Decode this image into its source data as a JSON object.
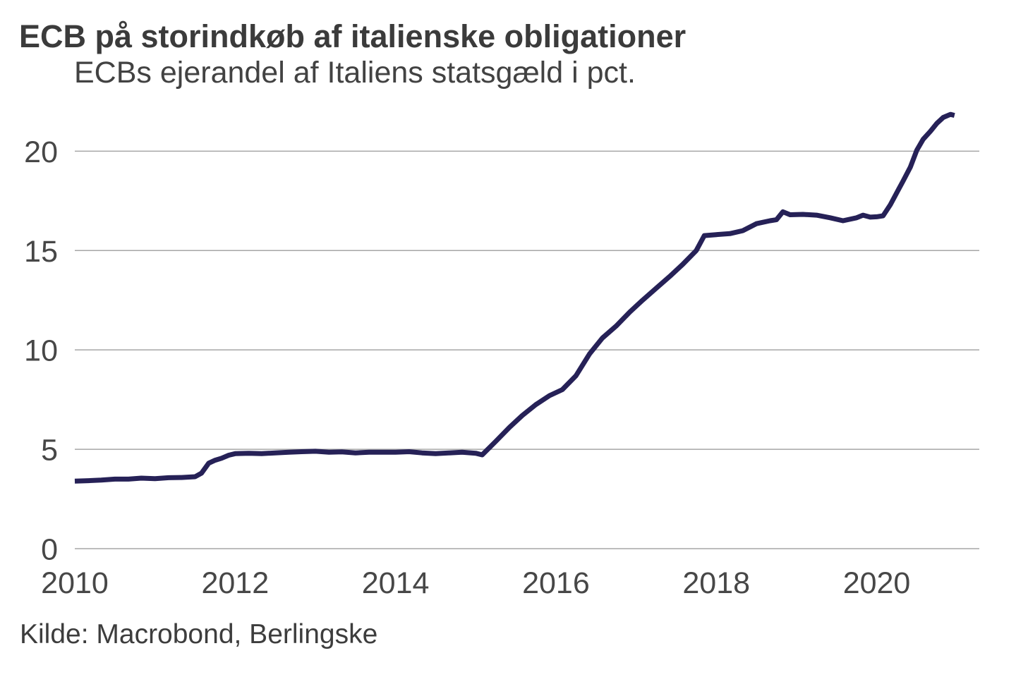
{
  "header": {
    "title": "ECB på storindkøb af italienske obligationer",
    "subtitle": "ECBs ejerandel af Italiens statsgæld i pct."
  },
  "footer": {
    "source": "Kilde: Macrobond, Berlingske"
  },
  "colors": {
    "line": "#262157",
    "grid": "#a6a6a6",
    "tick_text": "#474747",
    "title_text": "#3b3b3b",
    "subtitle_text": "#424242",
    "source_text": "#3d3d3d",
    "background": "#ffffff"
  },
  "chart_data": {
    "type": "line",
    "title": "ECB på storindkøb af italienske obligationer",
    "subtitle": "ECBs ejerandel af Italiens statsgæld i pct.",
    "source": "Kilde: Macrobond, Berlingske",
    "xlabel": "",
    "ylabel": "ECBs ejerandel af Italiens statsgæld i pct.",
    "xlim": [
      2010,
      2021.28
    ],
    "ylim": [
      0,
      22
    ],
    "x_ticks": [
      2010,
      2012,
      2014,
      2016,
      2018,
      2020
    ],
    "y_ticks": [
      0,
      5,
      10,
      15,
      20
    ],
    "grid": true,
    "legend": false,
    "line_width": 7,
    "series": [
      {
        "name": "ECBs ejerandel af Italiens statsgæld i pct.",
        "x": [
          2010.0,
          2010.17,
          2010.33,
          2010.5,
          2010.67,
          2010.83,
          2011.0,
          2011.17,
          2011.33,
          2011.5,
          2011.58,
          2011.67,
          2011.75,
          2011.83,
          2011.92,
          2012.0,
          2012.17,
          2012.33,
          2012.5,
          2012.67,
          2012.83,
          2013.0,
          2013.17,
          2013.33,
          2013.5,
          2013.67,
          2013.83,
          2014.0,
          2014.17,
          2014.33,
          2014.5,
          2014.67,
          2014.83,
          2015.0,
          2015.08,
          2015.25,
          2015.42,
          2015.58,
          2015.75,
          2015.92,
          2016.08,
          2016.25,
          2016.42,
          2016.58,
          2016.75,
          2016.92,
          2017.08,
          2017.25,
          2017.42,
          2017.58,
          2017.75,
          2017.85,
          2018.0,
          2018.17,
          2018.33,
          2018.5,
          2018.67,
          2018.75,
          2018.83,
          2018.92,
          2019.08,
          2019.25,
          2019.42,
          2019.58,
          2019.75,
          2019.83,
          2019.92,
          2020.0,
          2020.08,
          2020.17,
          2020.25,
          2020.33,
          2020.42,
          2020.5,
          2020.58,
          2020.67,
          2020.75,
          2020.83,
          2020.92,
          2020.97
        ],
        "y": [
          3.4,
          3.42,
          3.45,
          3.5,
          3.5,
          3.55,
          3.52,
          3.57,
          3.58,
          3.62,
          3.8,
          4.3,
          4.45,
          4.55,
          4.7,
          4.78,
          4.8,
          4.78,
          4.82,
          4.85,
          4.88,
          4.9,
          4.85,
          4.87,
          4.82,
          4.85,
          4.85,
          4.85,
          4.88,
          4.82,
          4.78,
          4.82,
          4.85,
          4.8,
          4.72,
          5.4,
          6.1,
          6.7,
          7.25,
          7.7,
          8.0,
          8.7,
          9.8,
          10.6,
          11.2,
          11.9,
          12.5,
          13.1,
          13.7,
          14.3,
          15.0,
          15.75,
          15.8,
          15.85,
          16.0,
          16.35,
          16.5,
          16.55,
          16.95,
          16.8,
          16.82,
          16.78,
          16.65,
          16.5,
          16.65,
          16.78,
          16.68,
          16.7,
          16.75,
          17.3,
          17.9,
          18.5,
          19.2,
          20.05,
          20.6,
          21.0,
          21.4,
          21.7,
          21.85,
          21.8
        ]
      }
    ]
  }
}
